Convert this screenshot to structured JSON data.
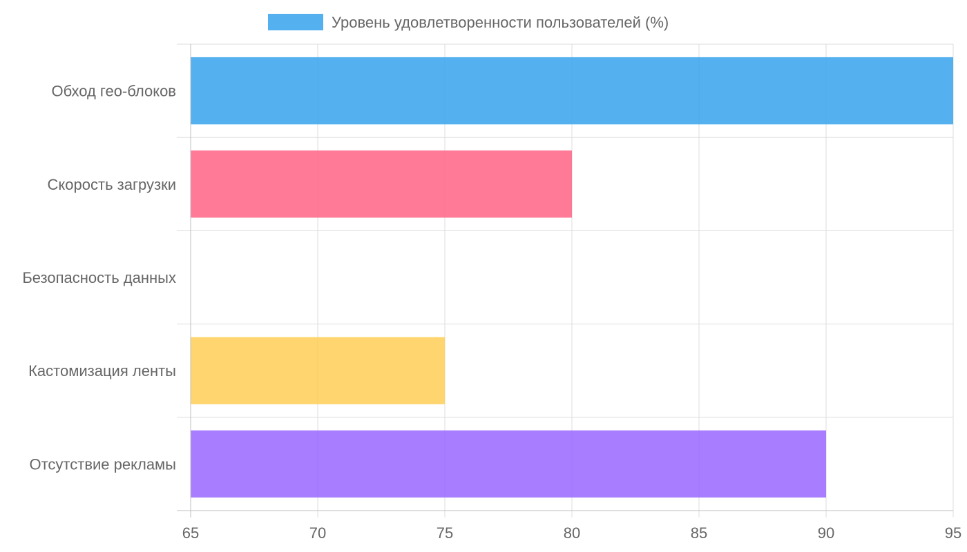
{
  "chart_data": {
    "type": "bar",
    "orientation": "horizontal",
    "categories": [
      "Обход гео-блоков",
      "Скорость загрузки",
      "Безопасность данных",
      "Кастомизация ленты",
      "Отсутствие рекламы"
    ],
    "series": [
      {
        "name": "Уровень удовлетворенности пользователей (%)",
        "values": [
          95,
          80,
          65,
          75,
          90
        ],
        "colors": [
          "#36A2EB",
          "#FF6384",
          "#4BC0C0",
          "#FFCE56",
          "#9966FF"
        ]
      }
    ],
    "xlim": [
      65,
      95
    ],
    "xticks": [
      "65",
      "70",
      "75",
      "80",
      "85",
      "90",
      "95"
    ],
    "grid": true,
    "legend": "top",
    "legend_color": "#36A2EB"
  }
}
